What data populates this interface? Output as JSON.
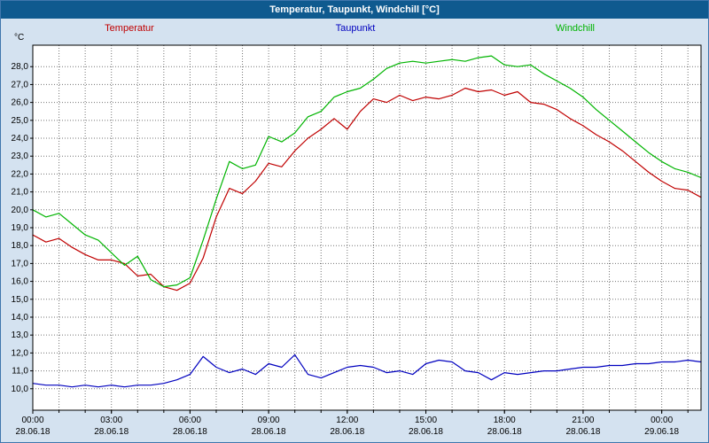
{
  "window": {
    "title": "Temperatur, Taupunkt, Windchill [°C]"
  },
  "colors": {
    "titlebar_bg": "#0f5a8f",
    "titlebar_text": "#ffffff",
    "window_bg": "#d4e2f0",
    "window_border": "#3f76ad",
    "plot_bg": "#ffffff",
    "plot_border": "#000000",
    "grid": "#000000"
  },
  "chart_data": {
    "type": "line",
    "title": "Temperatur, Taupunkt, Windchill [°C]",
    "ylabel": "°C",
    "xlabel": "",
    "grid": true,
    "legend_position": "top",
    "ylim": [
      8.8,
      29.2
    ],
    "yticks": [
      10,
      11,
      12,
      13,
      14,
      15,
      16,
      17,
      18,
      19,
      20,
      21,
      22,
      23,
      24,
      25,
      26,
      27,
      28
    ],
    "ytick_decimal_separator": ",",
    "x_unit": "hours",
    "x_start": 0,
    "x_step": 0.5,
    "xlim": [
      0,
      25.5
    ],
    "hour_grid_interval": 1,
    "xticks": [
      {
        "h": 0,
        "time": "00:00",
        "date": "28.06.18"
      },
      {
        "h": 3,
        "time": "03:00",
        "date": "28.06.18"
      },
      {
        "h": 6,
        "time": "06:00",
        "date": "28.06.18"
      },
      {
        "h": 9,
        "time": "09:00",
        "date": "28.06.18"
      },
      {
        "h": 12,
        "time": "12:00",
        "date": "28.06.18"
      },
      {
        "h": 15,
        "time": "15:00",
        "date": "28.06.18"
      },
      {
        "h": 18,
        "time": "18:00",
        "date": "28.06.18"
      },
      {
        "h": 21,
        "time": "21:00",
        "date": "28.06.18"
      },
      {
        "h": 24,
        "time": "00:00",
        "date": "29.06.18"
      }
    ],
    "series": [
      {
        "name": "Temperatur",
        "color": "#c00000",
        "values": [
          18.6,
          18.2,
          18.4,
          17.9,
          17.5,
          17.2,
          17.2,
          17.0,
          16.3,
          16.4,
          15.7,
          15.5,
          15.9,
          17.3,
          19.6,
          21.2,
          20.9,
          21.6,
          22.6,
          22.4,
          23.3,
          24.0,
          24.5,
          25.1,
          24.5,
          25.5,
          26.2,
          26.0,
          26.4,
          26.1,
          26.3,
          26.2,
          26.4,
          26.8,
          26.6,
          26.7,
          26.4,
          26.6,
          26.0,
          25.9,
          25.6,
          25.1,
          24.7,
          24.2,
          23.8,
          23.3,
          22.7,
          22.1,
          21.6,
          21.2,
          21.1,
          20.7
        ]
      },
      {
        "name": "Taupunkt",
        "color": "#0000bf",
        "values": [
          10.3,
          10.2,
          10.2,
          10.1,
          10.2,
          10.1,
          10.2,
          10.1,
          10.2,
          10.2,
          10.3,
          10.5,
          10.8,
          11.8,
          11.2,
          10.9,
          11.1,
          10.8,
          11.4,
          11.2,
          11.9,
          10.8,
          10.6,
          10.9,
          11.2,
          11.3,
          11.2,
          10.9,
          11.0,
          10.8,
          11.4,
          11.6,
          11.5,
          11.0,
          10.9,
          10.5,
          10.9,
          10.8,
          10.9,
          11.0,
          11.0,
          11.1,
          11.2,
          11.2,
          11.3,
          11.3,
          11.4,
          11.4,
          11.5,
          11.5,
          11.6,
          11.5
        ]
      },
      {
        "name": "Windchill",
        "color": "#00b400",
        "values": [
          20.0,
          19.6,
          19.8,
          19.2,
          18.6,
          18.3,
          17.6,
          16.9,
          17.4,
          16.1,
          15.7,
          15.8,
          16.2,
          18.3,
          20.6,
          22.7,
          22.3,
          22.5,
          24.1,
          23.8,
          24.3,
          25.2,
          25.5,
          26.3,
          26.6,
          26.8,
          27.3,
          27.9,
          28.2,
          28.3,
          28.2,
          28.3,
          28.4,
          28.3,
          28.5,
          28.6,
          28.1,
          28.0,
          28.1,
          27.6,
          27.2,
          26.8,
          26.3,
          25.6,
          25.0,
          24.4,
          23.8,
          23.2,
          22.7,
          22.3,
          22.1,
          21.8
        ]
      }
    ]
  }
}
